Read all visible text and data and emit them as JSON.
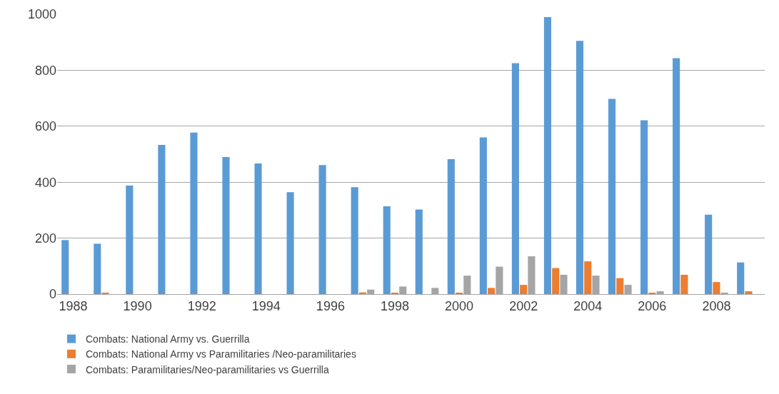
{
  "chart_data": {
    "type": "bar",
    "categories": [
      "1988",
      null,
      "1990",
      null,
      "1992",
      null,
      "1994",
      null,
      "1996",
      null,
      "1998",
      null,
      "2000",
      null,
      "2002",
      null,
      "2004",
      null,
      "2006",
      null,
      "2008",
      null
    ],
    "series": [
      {
        "name": "Combats: National Army vs. Guerrilla",
        "color": "#5b9bd5",
        "values": [
          193,
          180,
          388,
          533,
          577,
          490,
          467,
          364,
          461,
          382,
          314,
          302,
          482,
          560,
          825,
          990,
          905,
          698,
          621,
          843,
          284,
          113
        ]
      },
      {
        "name": "Combats: National Army vs Paramilitaries /Neo-paramilitaries",
        "color": "#ed7d31",
        "values": [
          0,
          3,
          0,
          0,
          0,
          0,
          0,
          0,
          0,
          6,
          3,
          0,
          4,
          22,
          33,
          93,
          117,
          57,
          4,
          69,
          43,
          10
        ]
      },
      {
        "name": "Combats: Paramilitaries/Neo-paramilitaries vs Guerrilla",
        "color": "#a5a5a5",
        "values": [
          0,
          0,
          0,
          0,
          0,
          0,
          null,
          0,
          null,
          16,
          27,
          22,
          66,
          98,
          135,
          69,
          66,
          33,
          10,
          0,
          4,
          0
        ]
      }
    ],
    "ylim": [
      0,
      1000
    ],
    "yticks": [
      0,
      200,
      400,
      600,
      800,
      1000
    ],
    "grid": "y",
    "legend": "bottom"
  }
}
